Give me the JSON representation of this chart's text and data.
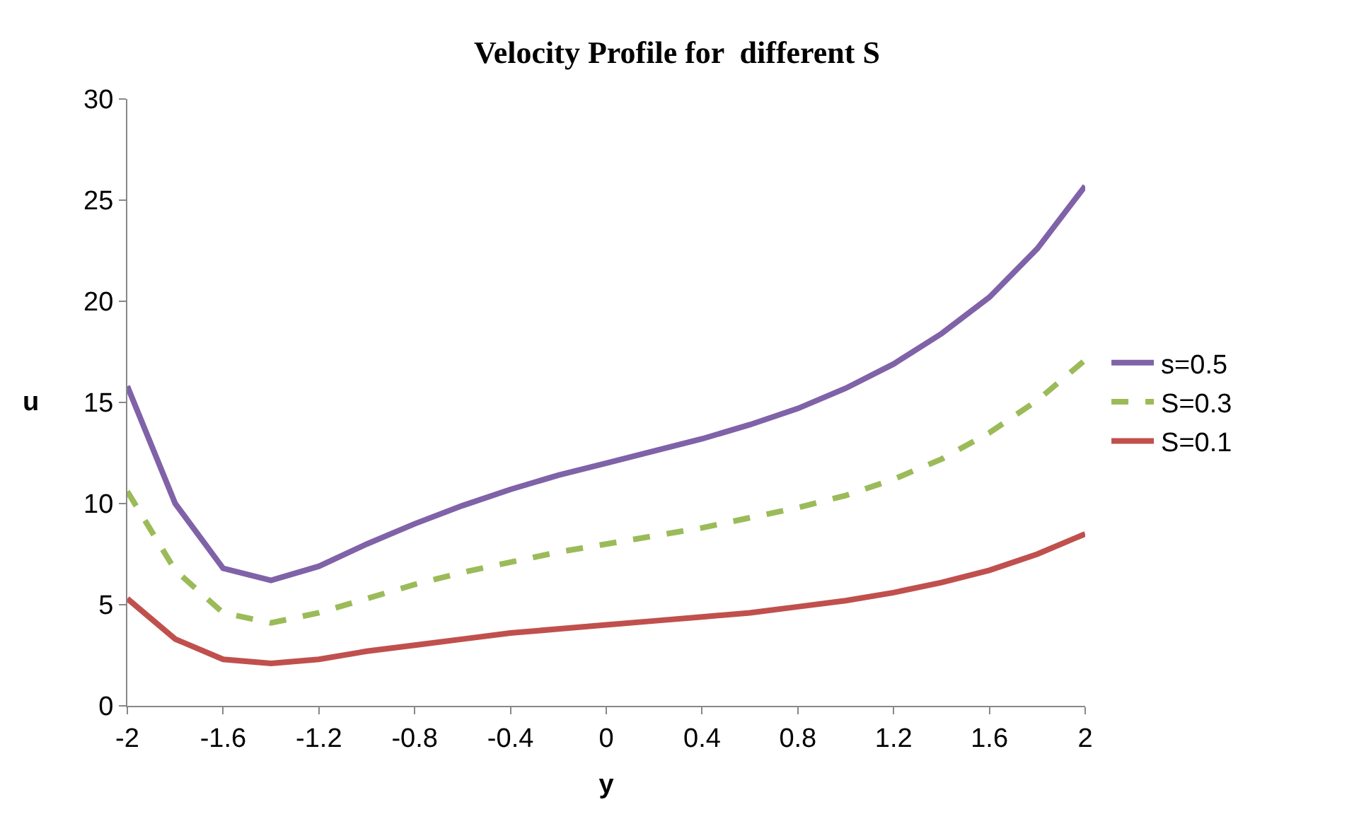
{
  "chart_data": {
    "type": "line",
    "title": "Velocity Profile for  different S",
    "xlabel": "y",
    "ylabel": "u",
    "x": [
      -2,
      -1.8,
      -1.6,
      -1.4,
      -1.2,
      -1.0,
      -0.8,
      -0.6,
      -0.4,
      -0.2,
      0,
      0.2,
      0.4,
      0.6,
      0.8,
      1.0,
      1.2,
      1.4,
      1.6,
      1.8,
      2
    ],
    "series": [
      {
        "name": "s=0.5",
        "color": "#7f62a8",
        "line_style": "solid",
        "values": [
          15.8,
          10.0,
          6.8,
          6.2,
          6.9,
          8.0,
          9.0,
          9.9,
          10.7,
          11.4,
          12.0,
          12.6,
          13.2,
          13.9,
          14.7,
          15.7,
          16.9,
          18.4,
          20.2,
          22.6,
          25.7
        ]
      },
      {
        "name": "S=0.3",
        "color": "#9bbb59",
        "line_style": "dashed",
        "values": [
          10.6,
          6.7,
          4.6,
          4.1,
          4.6,
          5.3,
          6.0,
          6.6,
          7.1,
          7.6,
          8.0,
          8.4,
          8.8,
          9.3,
          9.8,
          10.4,
          11.2,
          12.2,
          13.5,
          15.1,
          17.1
        ]
      },
      {
        "name": "S=0.1",
        "color": "#c0504d",
        "line_style": "solid",
        "values": [
          5.3,
          3.3,
          2.3,
          2.1,
          2.3,
          2.7,
          3.0,
          3.3,
          3.6,
          3.8,
          4.0,
          4.2,
          4.4,
          4.6,
          4.9,
          5.2,
          5.6,
          6.1,
          6.7,
          7.5,
          8.5
        ]
      }
    ],
    "xlim": [
      -2,
      2
    ],
    "xticks": [
      -2,
      -1.6,
      -1.2,
      -0.8,
      -0.4,
      0,
      0.4,
      0.8,
      1.2,
      1.6,
      2
    ],
    "ylim": [
      0,
      30
    ],
    "yticks": [
      0,
      5,
      10,
      15,
      20,
      25,
      30
    ],
    "grid": false,
    "legend": "right",
    "marker": "none"
  }
}
